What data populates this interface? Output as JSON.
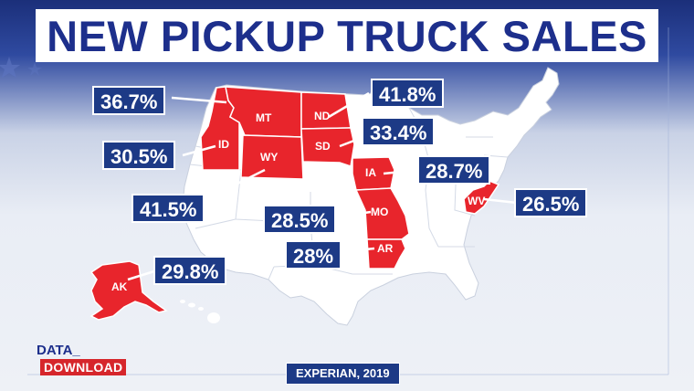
{
  "title": "NEW PICKUP TRUCK SALES",
  "source": "EXPERIAN, 2019",
  "brand": {
    "line1": "DATA_",
    "line2": "DOWNLOAD"
  },
  "colors": {
    "highlight": "#e8252c",
    "label_bg": "#1d3a86",
    "title_text": "#1d2f8c",
    "land": "#ffffff"
  },
  "states": {
    "MT": {
      "abbr": "MT",
      "value": "36.7%"
    },
    "ID": {
      "abbr": "ID",
      "value": "30.5%"
    },
    "WY": {
      "abbr": "WY",
      "value": "41.5%"
    },
    "ND": {
      "abbr": "ND",
      "value": "41.8%"
    },
    "SD": {
      "abbr": "SD",
      "value": "33.4%"
    },
    "IA": {
      "abbr": "IA",
      "value": "28.7%"
    },
    "MO": {
      "abbr": "MO",
      "value": "28.5%"
    },
    "AR": {
      "abbr": "AR",
      "value": "28%"
    },
    "WV": {
      "abbr": "WV",
      "value": "26.5%"
    },
    "AK": {
      "abbr": "AK",
      "value": "29.8%"
    }
  }
}
